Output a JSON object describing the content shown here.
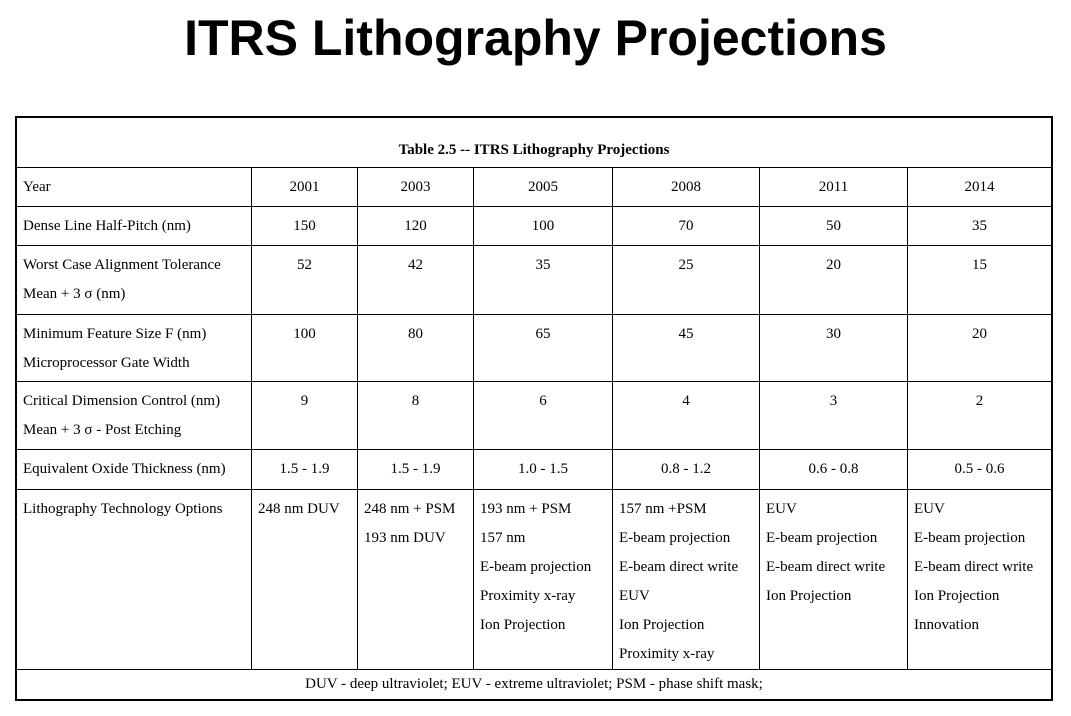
{
  "title": "ITRS Lithography Projections",
  "table": {
    "caption": "Table 2.5  --  ITRS Lithography Projections",
    "header": [
      "Year",
      "2001",
      "2003",
      "2005",
      "2008",
      "2011",
      "2014"
    ],
    "rows": [
      {
        "label": [
          "Dense Line Half-Pitch (nm)"
        ],
        "cells": [
          [
            "150"
          ],
          [
            "120"
          ],
          [
            "100"
          ],
          [
            "70"
          ],
          [
            "50"
          ],
          [
            "35"
          ]
        ]
      },
      {
        "label": [
          "Worst Case Alignment Tolerance",
          "Mean + 3 σ  (nm)"
        ],
        "cells": [
          [
            "52"
          ],
          [
            "42"
          ],
          [
            "35"
          ],
          [
            "25"
          ],
          [
            "20"
          ],
          [
            "15"
          ]
        ]
      },
      {
        "label": [
          "Minimum Feature Size F (nm)",
          "Microprocessor Gate Width"
        ],
        "cells": [
          [
            "100"
          ],
          [
            "80"
          ],
          [
            "65"
          ],
          [
            "45"
          ],
          [
            "30"
          ],
          [
            "20"
          ]
        ]
      },
      {
        "label": [
          "Critical Dimension Control (nm)",
          "Mean + 3 σ   - Post Etching"
        ],
        "cells": [
          [
            "9"
          ],
          [
            "8"
          ],
          [
            "6"
          ],
          [
            "4"
          ],
          [
            "3"
          ],
          [
            "2"
          ]
        ]
      },
      {
        "label": [
          "Equivalent Oxide Thickness (nm)"
        ],
        "cells": [
          [
            "1.5 - 1.9"
          ],
          [
            "1.5 - 1.9"
          ],
          [
            "1.0 - 1.5"
          ],
          [
            "0.8 - 1.2"
          ],
          [
            "0.6 - 0.8"
          ],
          [
            "0.5 - 0.6"
          ]
        ]
      },
      {
        "label": [
          "Lithography Technology Options"
        ],
        "cells": [
          [
            "248 nm DUV"
          ],
          [
            "248 nm + PSM",
            "193 nm DUV"
          ],
          [
            "193 nm + PSM",
            "157 nm",
            "E-beam projection",
            "Proximity x-ray",
            "Ion Projection"
          ],
          [
            "157 nm +PSM",
            "E-beam projection",
            "E-beam direct write",
            "EUV",
            "Ion Projection",
            "Proximity x-ray"
          ],
          [
            "EUV",
            "E-beam projection",
            "E-beam direct write",
            "Ion Projection"
          ],
          [
            "EUV",
            "E-beam projection",
            "E-beam direct write",
            "Ion Projection",
            "Innovation"
          ]
        ]
      }
    ],
    "footnote": "DUV - deep ultraviolet;     EUV - extreme ultraviolet;   PSM - phase shift mask;"
  }
}
